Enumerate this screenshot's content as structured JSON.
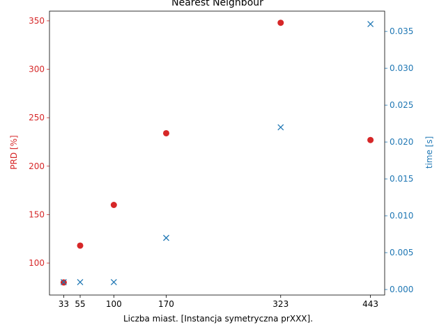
{
  "chart_data": {
    "type": "scatter",
    "title": "Nearest Neighbour",
    "xlabel": "Liczba miast. [Instancja symetryczna prXXX].",
    "x": [
      33,
      55,
      100,
      170,
      323,
      443
    ],
    "x_ticks": [
      33,
      55,
      100,
      170,
      323,
      443
    ],
    "xlim": [
      14,
      462
    ],
    "series": [
      {
        "name": "PRD [%]",
        "axis": "left",
        "marker": "circle",
        "color": "#d62728",
        "values": [
          80,
          118,
          160,
          234,
          348,
          227
        ]
      },
      {
        "name": "time [s]",
        "axis": "right",
        "marker": "x",
        "color": "#1f77b4",
        "values": [
          0.001,
          0.001,
          0.001,
          0.007,
          0.022,
          0.036
        ]
      }
    ],
    "y_left": {
      "label": "PRD [%]",
      "ylim": [
        67,
        360
      ],
      "ticks": [
        100,
        150,
        200,
        250,
        300,
        350
      ],
      "color": "#d62728"
    },
    "y_right": {
      "label": "time [s]",
      "ylim": [
        -0.00075,
        0.03775
      ],
      "ticks": [
        0.0,
        0.005,
        0.01,
        0.015,
        0.02,
        0.025,
        0.03,
        0.035
      ],
      "tick_labels": [
        "0.000",
        "0.005",
        "0.010",
        "0.015",
        "0.020",
        "0.025",
        "0.030",
        "0.035"
      ],
      "color": "#1f77b4"
    },
    "grid": false,
    "legend": "none"
  }
}
